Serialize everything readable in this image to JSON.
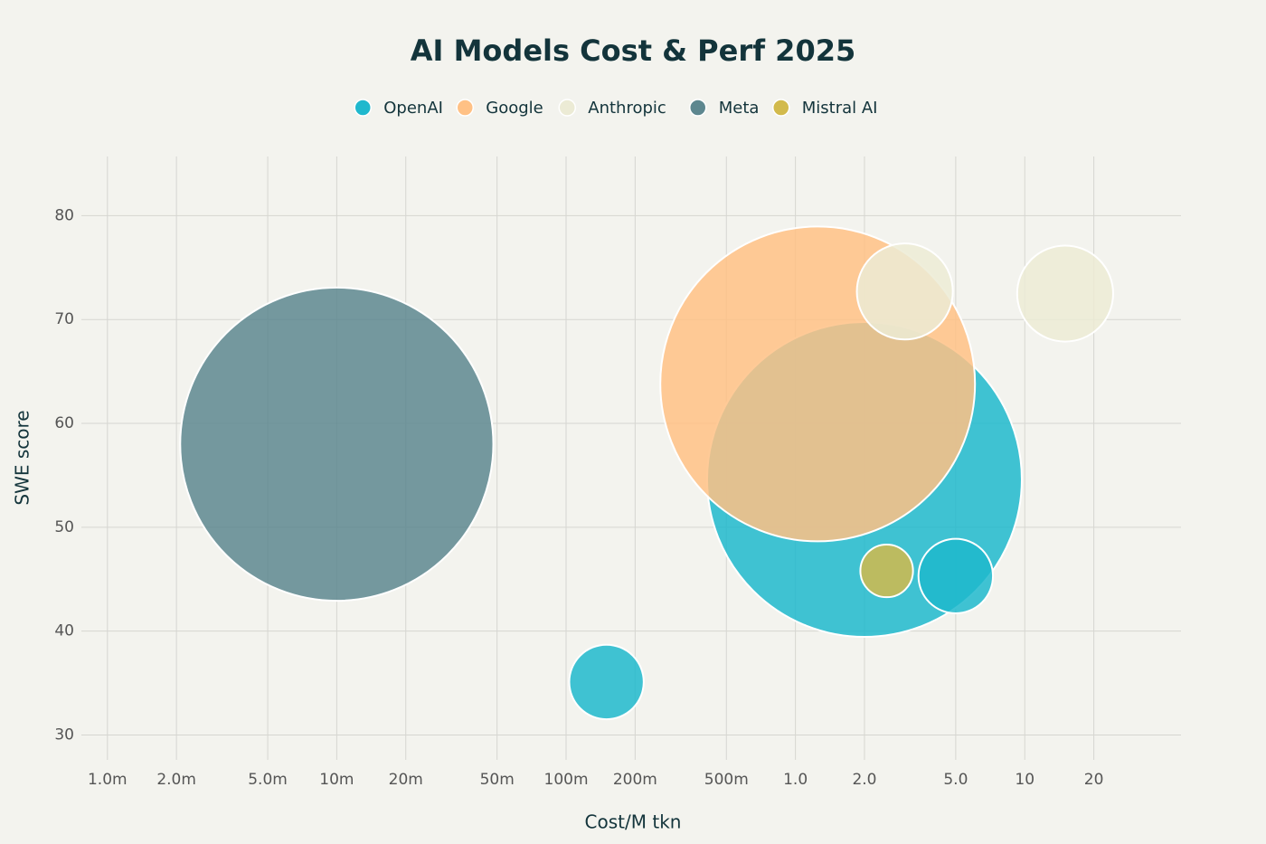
{
  "chart_data": {
    "type": "bubble",
    "title": "AI Models Cost & Perf 2025",
    "x_label": "Cost/M tkn",
    "y_label": "SWE score",
    "x_log": true,
    "grid": true,
    "legend": "top",
    "xlim": [
      0.00077,
      48
    ],
    "ylim": [
      27.6,
      85.7
    ],
    "xticks": [
      {
        "value": 0.001,
        "label": "1.0m"
      },
      {
        "value": 0.002,
        "label": "2.0m"
      },
      {
        "value": 0.005,
        "label": "5.0m"
      },
      {
        "value": 0.01,
        "label": "10m"
      },
      {
        "value": 0.02,
        "label": "20m"
      },
      {
        "value": 0.05,
        "label": "50m"
      },
      {
        "value": 0.1,
        "label": "100m"
      },
      {
        "value": 0.2,
        "label": "200m"
      },
      {
        "value": 0.5,
        "label": "500m"
      },
      {
        "value": 1,
        "label": "1.0"
      },
      {
        "value": 2,
        "label": "2.0"
      },
      {
        "value": 5,
        "label": "5.0"
      },
      10,
      20
    ],
    "yticks": [
      30,
      40,
      50,
      60,
      70,
      80
    ],
    "series": [
      {
        "name": "OpenAI",
        "color": "#1fb8cd",
        "x": [
          2.0,
          5.0,
          0.15
        ],
        "values": [
          54.6,
          45.3,
          35.1
        ],
        "sizes": [
          100,
          5.6,
          5.6
        ]
      },
      {
        "name": "Google",
        "color": "#ffc185",
        "x": [
          1.25
        ],
        "values": [
          63.8
        ],
        "sizes": [
          100
        ]
      },
      {
        "name": "Anthropic",
        "color": "#eceBd5",
        "x": [
          3.0,
          15
        ],
        "values": [
          72.7,
          72.5
        ],
        "sizes": [
          9.3,
          9.3
        ]
      },
      {
        "name": "Meta",
        "color": "#5d878f",
        "x": [
          0.01
        ],
        "values": [
          58.0
        ],
        "sizes": [
          99
        ]
      },
      {
        "name": "Mistral AI",
        "color": "#d2ba4c",
        "x": [
          2.5
        ],
        "values": [
          45.8
        ],
        "sizes": [
          2.8
        ]
      }
    ]
  }
}
